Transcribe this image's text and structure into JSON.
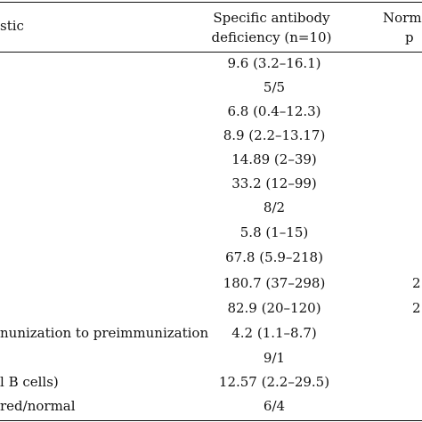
{
  "header": {
    "col1_fragment": "stic",
    "col2_line1": "Specific antibody",
    "col2_line2": "deficiency (n=10)",
    "col3_line1": "Norm",
    "col3_line2": "p"
  },
  "rows": [
    {
      "label": "",
      "value": "9.6 (3.2–16.1)",
      "third": ""
    },
    {
      "label": "",
      "value": "5/5",
      "third": ""
    },
    {
      "label": "",
      "value": "6.8 (0.4–12.3)",
      "third": ""
    },
    {
      "label": "",
      "value": "8.9 (2.2–13.17)",
      "third": ""
    },
    {
      "label": "",
      "value": "14.89 (2–39)",
      "third": ""
    },
    {
      "label": "",
      "value": "33.2 (12–99)",
      "third": ""
    },
    {
      "label": "",
      "value": "8/2",
      "third": ""
    },
    {
      "label": "",
      "value": "5.8 (1–15)",
      "third": ""
    },
    {
      "label": "",
      "value": "67.8 (5.9–218)",
      "third": ""
    },
    {
      "label": "",
      "value": "180.7 (37–298)",
      "third": "2"
    },
    {
      "label": "",
      "value": "82.9 (20–120)",
      "third": "2"
    },
    {
      "label": "nunization to preimmunization",
      "value": "4.2 (1.1–8.7)",
      "third": ""
    },
    {
      "label": "",
      "value": "9/1",
      "third": ""
    },
    {
      "label": "l B cells)",
      "value": "12.57 (2.2–29.5)",
      "third": ""
    },
    {
      "label": "red/normal",
      "value": "6/4",
      "third": ""
    }
  ]
}
